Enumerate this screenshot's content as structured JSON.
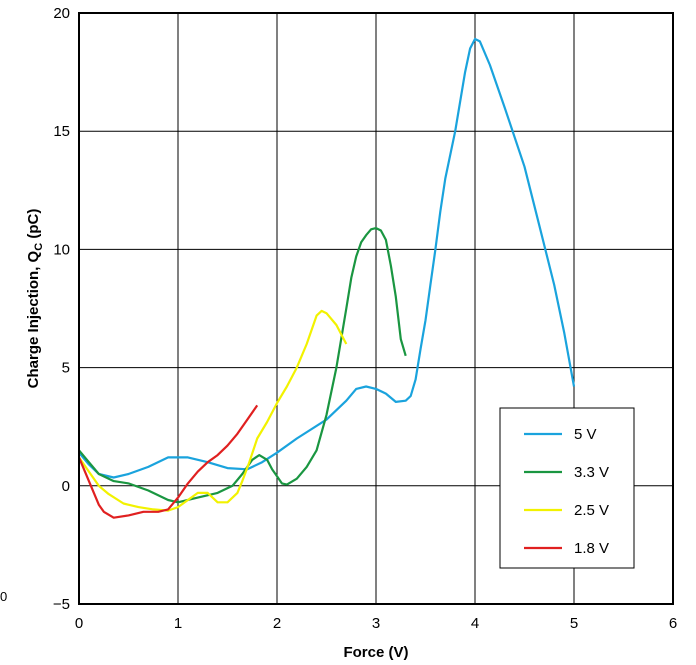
{
  "chart_data": {
    "type": "line",
    "title": "",
    "xlabel": "Force (V)",
    "ylabel_main": "Charge Injection, Q",
    "ylabel_sub": "C",
    "ylabel_tail": " (pC)",
    "xlim": [
      0,
      6
    ],
    "ylim": [
      -5,
      20
    ],
    "xticks": [
      "0",
      "1",
      "2",
      "3",
      "4",
      "5",
      "6"
    ],
    "yticks": [
      "−5",
      "0",
      "5",
      "10",
      "15",
      "20"
    ],
    "stray_label": "0",
    "grid": true,
    "legend_position": "bottom-right",
    "series": [
      {
        "name": "5 V",
        "color": "#1aa3dd",
        "points": [
          [
            0,
            1.4
          ],
          [
            0.1,
            0.9
          ],
          [
            0.2,
            0.5
          ],
          [
            0.35,
            0.35
          ],
          [
            0.5,
            0.5
          ],
          [
            0.7,
            0.8
          ],
          [
            0.9,
            1.2
          ],
          [
            1.1,
            1.2
          ],
          [
            1.3,
            1.0
          ],
          [
            1.5,
            0.75
          ],
          [
            1.7,
            0.7
          ],
          [
            1.85,
            1.0
          ],
          [
            2.0,
            1.4
          ],
          [
            2.2,
            2.0
          ],
          [
            2.5,
            2.8
          ],
          [
            2.7,
            3.6
          ],
          [
            2.8,
            4.1
          ],
          [
            2.9,
            4.2
          ],
          [
            3.0,
            4.1
          ],
          [
            3.1,
            3.9
          ],
          [
            3.2,
            3.55
          ],
          [
            3.3,
            3.6
          ],
          [
            3.35,
            3.8
          ],
          [
            3.4,
            4.5
          ],
          [
            3.45,
            5.8
          ],
          [
            3.5,
            7.0
          ],
          [
            3.55,
            8.5
          ],
          [
            3.6,
            10.0
          ],
          [
            3.65,
            11.6
          ],
          [
            3.7,
            13.0
          ],
          [
            3.8,
            15.0
          ],
          [
            3.9,
            17.5
          ],
          [
            3.95,
            18.5
          ],
          [
            4.0,
            18.9
          ],
          [
            4.05,
            18.8
          ],
          [
            4.15,
            17.8
          ],
          [
            4.3,
            16.0
          ],
          [
            4.5,
            13.5
          ],
          [
            4.65,
            11.0
          ],
          [
            4.8,
            8.5
          ],
          [
            4.9,
            6.5
          ],
          [
            5.0,
            4.2
          ]
        ]
      },
      {
        "name": "3.3 V",
        "color": "#1a9641",
        "points": [
          [
            0,
            1.5
          ],
          [
            0.1,
            1.0
          ],
          [
            0.2,
            0.5
          ],
          [
            0.35,
            0.2
          ],
          [
            0.5,
            0.1
          ],
          [
            0.7,
            -0.2
          ],
          [
            0.9,
            -0.6
          ],
          [
            1.0,
            -0.7
          ],
          [
            1.2,
            -0.5
          ],
          [
            1.4,
            -0.3
          ],
          [
            1.55,
            0.0
          ],
          [
            1.65,
            0.5
          ],
          [
            1.75,
            1.1
          ],
          [
            1.82,
            1.3
          ],
          [
            1.9,
            1.1
          ],
          [
            1.95,
            0.7
          ],
          [
            2.0,
            0.4
          ],
          [
            2.05,
            0.1
          ],
          [
            2.1,
            0.05
          ],
          [
            2.2,
            0.3
          ],
          [
            2.3,
            0.8
          ],
          [
            2.4,
            1.5
          ],
          [
            2.5,
            3.0
          ],
          [
            2.6,
            5.0
          ],
          [
            2.7,
            7.5
          ],
          [
            2.75,
            8.8
          ],
          [
            2.8,
            9.7
          ],
          [
            2.85,
            10.3
          ],
          [
            2.9,
            10.6
          ],
          [
            2.95,
            10.85
          ],
          [
            3.0,
            10.9
          ],
          [
            3.05,
            10.8
          ],
          [
            3.1,
            10.4
          ],
          [
            3.15,
            9.3
          ],
          [
            3.2,
            8.0
          ],
          [
            3.25,
            6.2
          ],
          [
            3.3,
            5.5
          ]
        ]
      },
      {
        "name": "2.5 V",
        "color": "#f2f200",
        "points": [
          [
            0,
            1.2
          ],
          [
            0.1,
            0.6
          ],
          [
            0.2,
            0.0
          ],
          [
            0.3,
            -0.35
          ],
          [
            0.45,
            -0.75
          ],
          [
            0.6,
            -0.9
          ],
          [
            0.75,
            -1.0
          ],
          [
            0.9,
            -1.05
          ],
          [
            1.0,
            -0.9
          ],
          [
            1.1,
            -0.6
          ],
          [
            1.2,
            -0.3
          ],
          [
            1.3,
            -0.3
          ],
          [
            1.4,
            -0.7
          ],
          [
            1.5,
            -0.7
          ],
          [
            1.6,
            -0.3
          ],
          [
            1.65,
            0.2
          ],
          [
            1.72,
            1.0
          ],
          [
            1.8,
            2.0
          ],
          [
            1.9,
            2.7
          ],
          [
            2.0,
            3.5
          ],
          [
            2.1,
            4.2
          ],
          [
            2.2,
            5.0
          ],
          [
            2.3,
            6.0
          ],
          [
            2.4,
            7.2
          ],
          [
            2.45,
            7.4
          ],
          [
            2.5,
            7.3
          ],
          [
            2.6,
            6.8
          ],
          [
            2.7,
            6.0
          ]
        ]
      },
      {
        "name": "1.8 V",
        "color": "#e02020",
        "points": [
          [
            0,
            1.2
          ],
          [
            0.1,
            0.2
          ],
          [
            0.2,
            -0.8
          ],
          [
            0.25,
            -1.1
          ],
          [
            0.35,
            -1.35
          ],
          [
            0.5,
            -1.25
          ],
          [
            0.65,
            -1.1
          ],
          [
            0.8,
            -1.1
          ],
          [
            0.9,
            -1.0
          ],
          [
            1.0,
            -0.5
          ],
          [
            1.1,
            0.1
          ],
          [
            1.2,
            0.6
          ],
          [
            1.3,
            1.0
          ],
          [
            1.4,
            1.3
          ],
          [
            1.5,
            1.7
          ],
          [
            1.6,
            2.2
          ],
          [
            1.7,
            2.8
          ],
          [
            1.8,
            3.4
          ]
        ]
      }
    ]
  }
}
